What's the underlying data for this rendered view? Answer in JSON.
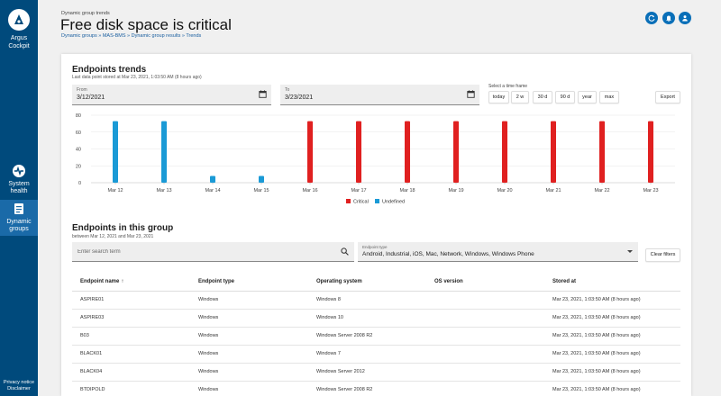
{
  "sidebar": {
    "brand": [
      "Argus",
      "Cockpit"
    ],
    "health": [
      "System",
      "health"
    ],
    "groups": [
      "Dynamic",
      "groups"
    ],
    "footer": [
      "Privacy notice",
      "Disclaimer"
    ]
  },
  "header": {
    "overline": "Dynamic group trends",
    "title": "Free disk space is critical",
    "breadcrumb": "Dynamic groups » MAS-BMS » Dynamic group results » Trends"
  },
  "trends": {
    "title": "Endpoints trends",
    "subtitle": "Last data point stored at Mar 23, 2021, 1:03:50 AM (8 hours ago)",
    "from_label": "From",
    "from_value": "3/12/2021",
    "to_label": "To",
    "to_value": "3/23/2021",
    "timeframe_label": "Select a time frame",
    "timeframes": [
      "today",
      "2 w",
      "30 d",
      "90 d",
      "year",
      "max"
    ],
    "export_label": "Export"
  },
  "chart_data": {
    "type": "bar",
    "categories": [
      "Mar 12",
      "Mar 13",
      "Mar 14",
      "Mar 15",
      "Mar 16",
      "Mar 17",
      "Mar 18",
      "Mar 19",
      "Mar 20",
      "Mar 21",
      "Mar 22",
      "Mar 23"
    ],
    "series": [
      {
        "name": "Critical",
        "color": "#e02020",
        "values": [
          0,
          0,
          0,
          0,
          73,
          73,
          73,
          73,
          73,
          73,
          73,
          73
        ]
      },
      {
        "name": "Undefined",
        "color": "#1a9ad6",
        "values": [
          73,
          73,
          8,
          8,
          0,
          0,
          0,
          0,
          0,
          0,
          0,
          0
        ]
      }
    ],
    "yticks": [
      0,
      20,
      40,
      60,
      80
    ],
    "ylim": [
      0,
      80
    ],
    "legend": "bottom",
    "grid": true
  },
  "group": {
    "title": "Endpoints in this group",
    "subtitle": "between Mar 12, 2021 and Mar 23, 2021",
    "search_placeholder": "Enter search term",
    "type_label": "Endpoint type",
    "type_value": "Android, Industrial, iOS, Mac, Network, Windows, Windows Phone",
    "clear_label": "Clear filters",
    "columns": [
      "Endpoint name",
      "Endpoint type",
      "Operating system",
      "OS version",
      "Stored at"
    ],
    "sort_indicator": "↑",
    "rows": [
      [
        "ASPIRE01",
        "Windows",
        "Windows 8",
        "",
        "Mar 23, 2021, 1:03:50 AM (8 hours ago)"
      ],
      [
        "ASPIRE03",
        "Windows",
        "Windows 10",
        "",
        "Mar 23, 2021, 1:03:50 AM (8 hours ago)"
      ],
      [
        "B03",
        "Windows",
        "Windows Server 2008 R2",
        "",
        "Mar 23, 2021, 1:03:50 AM (8 hours ago)"
      ],
      [
        "BLACK01",
        "Windows",
        "Windows 7",
        "",
        "Mar 23, 2021, 1:03:50 AM (8 hours ago)"
      ],
      [
        "BLACK04",
        "Windows",
        "Windows Server 2012",
        "",
        "Mar 23, 2021, 1:03:50 AM (8 hours ago)"
      ],
      [
        "BTDIPOLD",
        "Windows",
        "Windows Server 2008 R2",
        "",
        "Mar 23, 2021, 1:03:50 AM (8 hours ago)"
      ]
    ]
  }
}
